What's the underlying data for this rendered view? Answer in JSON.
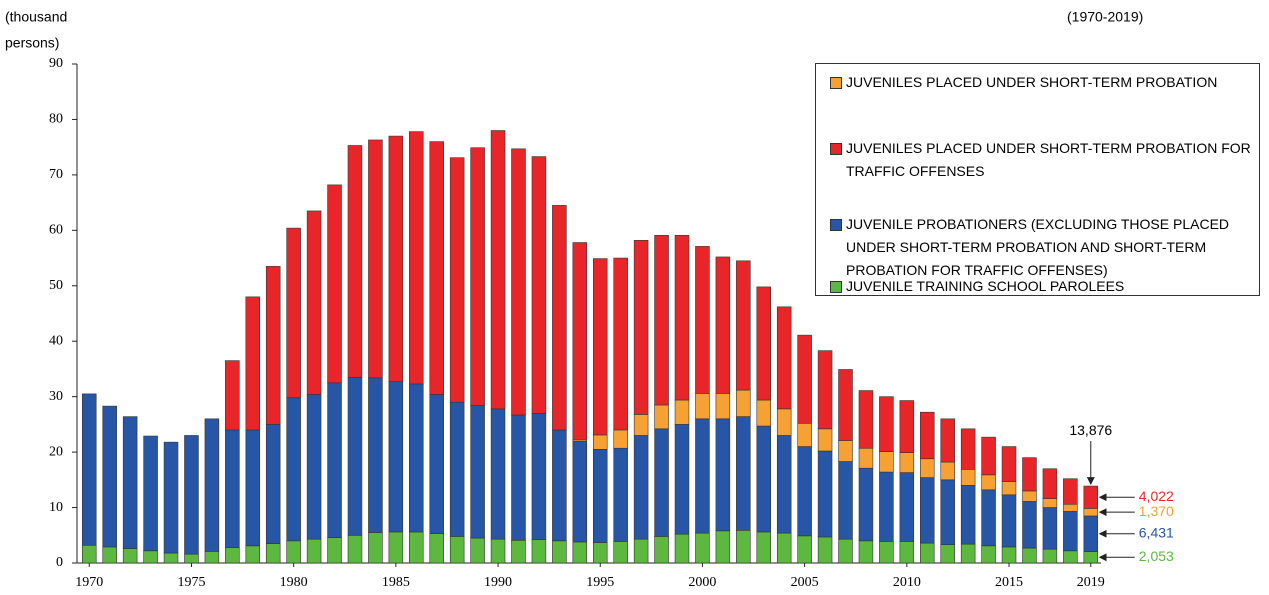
{
  "chart_data": {
    "type": "stacked_bar",
    "ylabel_lines": [
      "(thousand",
      "persons)"
    ],
    "subtitle": "(1970-2019)",
    "x": [
      1970,
      1971,
      1972,
      1973,
      1974,
      1975,
      1976,
      1977,
      1978,
      1979,
      1980,
      1981,
      1982,
      1983,
      1984,
      1985,
      1986,
      1987,
      1988,
      1989,
      1990,
      1991,
      1992,
      1993,
      1994,
      1995,
      1996,
      1997,
      1998,
      1999,
      2000,
      2001,
      2002,
      2003,
      2004,
      2005,
      2006,
      2007,
      2008,
      2009,
      2010,
      2011,
      2012,
      2013,
      2014,
      2015,
      2016,
      2017,
      2018,
      2019
    ],
    "xlim": [
      1969.4,
      2019.5
    ],
    "xticks": [
      1970,
      1975,
      1980,
      1985,
      1990,
      1995,
      2000,
      2005,
      2010,
      2015,
      2019
    ],
    "ylim": [
      0,
      90
    ],
    "yticks": [
      0,
      10,
      20,
      30,
      40,
      50,
      60,
      70,
      80,
      90
    ],
    "grid": false,
    "series": [
      {
        "name": "JUVENILE TRAINING SCHOOL PAROLEES",
        "color": "#5cb83f",
        "values": [
          3.2,
          2.9,
          2.6,
          2.2,
          1.8,
          1.6,
          2.1,
          2.8,
          3.1,
          3.5,
          4.0,
          4.3,
          4.6,
          5.0,
          5.5,
          5.6,
          5.6,
          5.3,
          4.8,
          4.5,
          4.3,
          4.1,
          4.2,
          4.0,
          3.8,
          3.7,
          3.9,
          4.3,
          4.8,
          5.2,
          5.4,
          5.8,
          5.9,
          5.6,
          5.4,
          4.9,
          4.7,
          4.3,
          4.0,
          3.9,
          3.9,
          3.6,
          3.3,
          3.4,
          3.1,
          2.9,
          2.7,
          2.5,
          2.2,
          2.053
        ],
        "value_labels": [
          null,
          null,
          null,
          null,
          null,
          null,
          null,
          null,
          null,
          null,
          null,
          null,
          null,
          null,
          null,
          null,
          null,
          null,
          null,
          null,
          null,
          null,
          null,
          null,
          null,
          null,
          null,
          null,
          null,
          null,
          null,
          null,
          null,
          null,
          null,
          null,
          null,
          null,
          null,
          null,
          null,
          null,
          null,
          null,
          null,
          null,
          null,
          null,
          null,
          "2,053"
        ]
      },
      {
        "name": "JUVENILE PROBATIONERS (EXCLUDING THOSE PLACED UNDER SHORT-TERM PROBATION AND SHORT-TERM PROBATION FOR TRAFFIC OFFENSES)",
        "color": "#2756a6",
        "values": [
          27.3,
          25.4,
          23.8,
          20.7,
          20.0,
          21.4,
          23.9,
          21.2,
          20.9,
          21.5,
          25.8,
          26.1,
          27.9,
          28.5,
          27.9,
          27.1,
          26.7,
          25.1,
          24.2,
          23.9,
          23.5,
          22.6,
          22.8,
          20.0,
          18.2,
          16.8,
          16.8,
          18.7,
          19.4,
          19.8,
          20.6,
          20.2,
          20.5,
          19.1,
          17.6,
          16.1,
          15.5,
          14.0,
          13.1,
          12.5,
          12.4,
          11.8,
          11.7,
          10.6,
          10.1,
          9.4,
          8.4,
          7.5,
          7.1,
          6.431
        ],
        "value_labels": [
          null,
          null,
          null,
          null,
          null,
          null,
          null,
          null,
          null,
          null,
          null,
          null,
          null,
          null,
          null,
          null,
          null,
          null,
          null,
          null,
          null,
          null,
          null,
          null,
          null,
          null,
          null,
          null,
          null,
          null,
          null,
          null,
          null,
          null,
          null,
          null,
          null,
          null,
          null,
          null,
          null,
          null,
          null,
          null,
          null,
          null,
          null,
          null,
          null,
          "6,431"
        ]
      },
      {
        "name": "JUVENILES PLACED UNDER SHORT-TERM PROBATION",
        "color": "#f7a033",
        "values": [
          null,
          null,
          null,
          null,
          null,
          null,
          null,
          null,
          null,
          null,
          null,
          null,
          null,
          null,
          null,
          null,
          null,
          null,
          null,
          null,
          null,
          null,
          null,
          null,
          0.3,
          2.6,
          3.3,
          3.8,
          4.3,
          4.4,
          4.6,
          4.6,
          4.8,
          4.7,
          4.8,
          4.2,
          4.0,
          3.8,
          3.6,
          3.7,
          3.6,
          3.4,
          3.2,
          2.9,
          2.7,
          2.4,
          1.9,
          1.6,
          1.3,
          1.37
        ],
        "value_labels": [
          null,
          null,
          null,
          null,
          null,
          null,
          null,
          null,
          null,
          null,
          null,
          null,
          null,
          null,
          null,
          null,
          null,
          null,
          null,
          null,
          null,
          null,
          null,
          null,
          null,
          null,
          null,
          null,
          null,
          null,
          null,
          null,
          null,
          null,
          null,
          null,
          null,
          null,
          null,
          null,
          null,
          null,
          null,
          null,
          null,
          null,
          null,
          null,
          null,
          "1,370"
        ]
      },
      {
        "name": "JUVENILES PLACED UNDER SHORT-TERM PROBATION FOR TRAFFIC OFFENSES",
        "color": "#e8262a",
        "values": [
          null,
          null,
          null,
          null,
          null,
          null,
          null,
          12.5,
          24.0,
          28.5,
          30.6,
          33.1,
          35.7,
          41.8,
          42.9,
          44.3,
          45.5,
          45.6,
          44.1,
          46.5,
          50.2,
          48.0,
          46.3,
          40.5,
          35.5,
          31.8,
          31.0,
          31.4,
          30.6,
          29.7,
          26.5,
          24.6,
          23.3,
          20.4,
          18.4,
          15.9,
          14.1,
          12.8,
          10.4,
          9.9,
          9.4,
          8.4,
          7.8,
          7.3,
          6.8,
          6.3,
          6.0,
          5.4,
          4.6,
          4.022
        ],
        "value_labels": [
          null,
          null,
          null,
          null,
          null,
          null,
          null,
          null,
          null,
          null,
          null,
          null,
          null,
          null,
          null,
          null,
          null,
          null,
          null,
          null,
          null,
          null,
          null,
          null,
          null,
          null,
          null,
          null,
          null,
          null,
          null,
          null,
          null,
          null,
          null,
          null,
          null,
          null,
          null,
          null,
          null,
          null,
          null,
          null,
          null,
          null,
          null,
          null,
          null,
          "4,022"
        ]
      }
    ],
    "total_annotation": {
      "value": 13.876,
      "label": "13,876"
    },
    "legend": "upper right"
  }
}
